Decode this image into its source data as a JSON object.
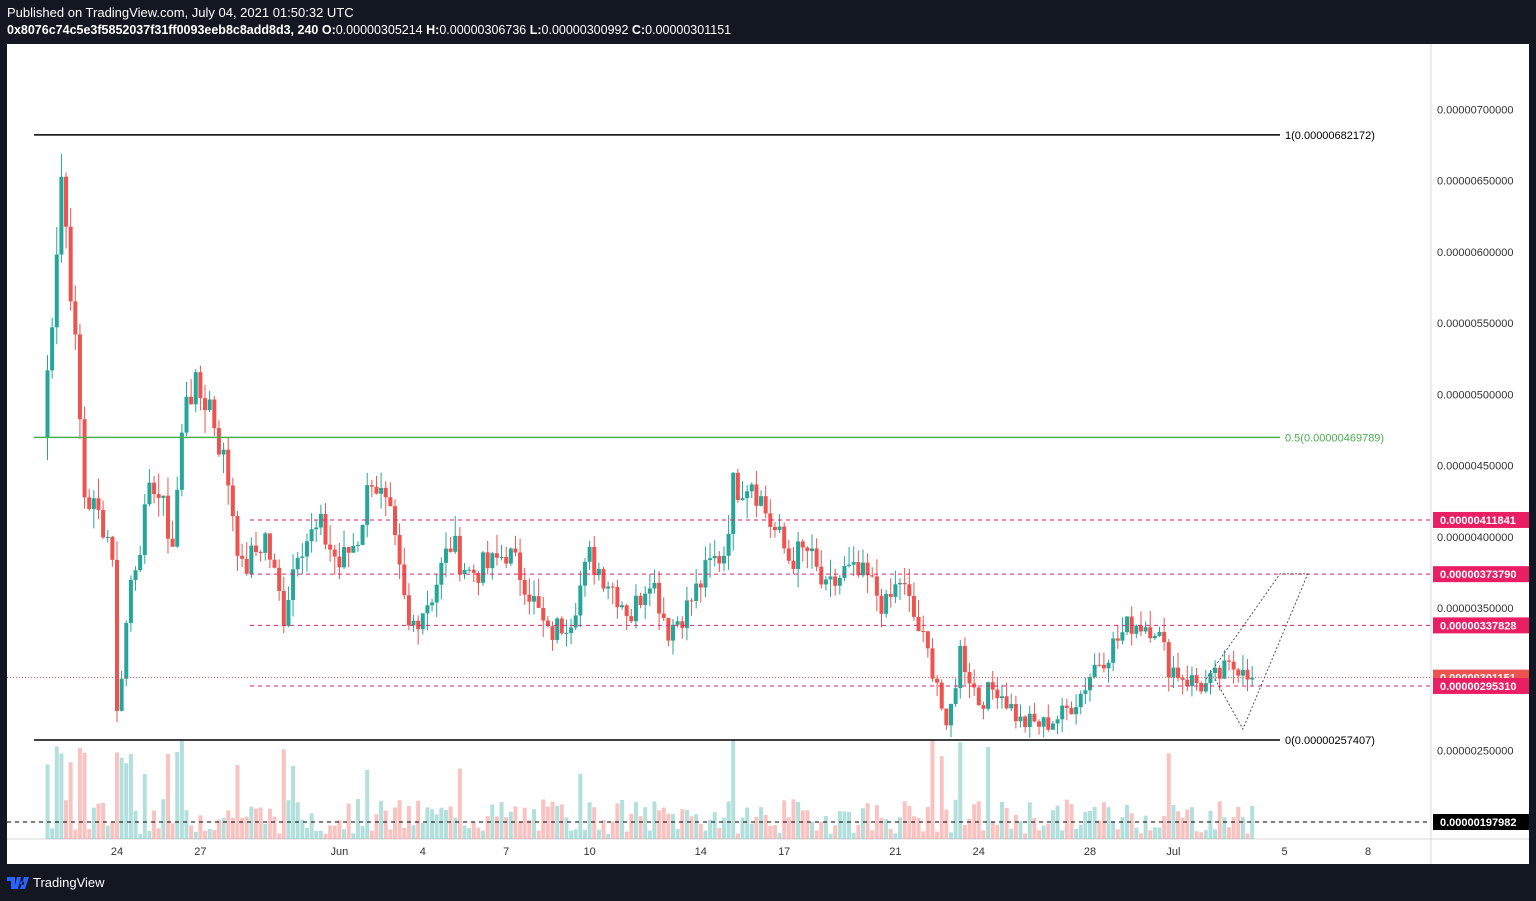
{
  "header": {
    "published": "Published on TradingView.com, July 04, 2021 01:50:32 UTC",
    "symbol": "0x8076c74c5e3f5852037f31ff0093eeb8c8add8d3, 240",
    "o_label": "O:",
    "o_value": "0.00000305214",
    "h_label": "H:",
    "h_value": "0.00000306736",
    "l_label": "L:",
    "l_value": "0.00000300992",
    "c_label": "C:",
    "c_value": "0.00000301151"
  },
  "footer": {
    "brand": "TradingView"
  },
  "colors": {
    "up": "#26a69a",
    "down": "#ef5350",
    "background": "#ffffff",
    "frame": "#131722",
    "fib_level": "#000000",
    "fib_mid": "#4caf50",
    "level_line": "#e91e63"
  },
  "chart_data": {
    "type": "candlestick",
    "interval": "240",
    "ylim": [
      1.7e-06,
      7.5e-06
    ],
    "y_ticks": [
      "0.00000250000",
      "0.00000300000",
      "0.00000350000",
      "0.00000400000",
      "0.00000450000",
      "0.00000500000",
      "0.00000550000",
      "0.00000600000",
      "0.00000650000",
      "0.00000700000"
    ],
    "x_ticks": [
      {
        "label": "24",
        "date": "2021-05-24"
      },
      {
        "label": "27",
        "date": "2021-05-27"
      },
      {
        "label": "Jun",
        "date": "2021-06-01"
      },
      {
        "label": "4",
        "date": "2021-06-04"
      },
      {
        "label": "7",
        "date": "2021-06-07"
      },
      {
        "label": "10",
        "date": "2021-06-10"
      },
      {
        "label": "14",
        "date": "2021-06-14"
      },
      {
        "label": "17",
        "date": "2021-06-17"
      },
      {
        "label": "21",
        "date": "2021-06-21"
      },
      {
        "label": "24",
        "date": "2021-06-24"
      },
      {
        "label": "28",
        "date": "2021-06-28"
      },
      {
        "label": "Jul",
        "date": "2021-07-01"
      },
      {
        "label": "5",
        "date": "2021-07-05"
      },
      {
        "label": "8",
        "date": "2021-07-08"
      }
    ],
    "fib_levels": [
      {
        "label": "1(0.00000682172)",
        "value": 6.82172e-06,
        "color": "#000000"
      },
      {
        "label": "0.5(0.00000469789)",
        "value": 4.69789e-06,
        "color": "#4caf50"
      },
      {
        "label": "0(0.00000257407)",
        "value": 2.57407e-06,
        "color": "#000000"
      }
    ],
    "price_levels": [
      {
        "label": "0.00000411841",
        "value": 4.11841e-06,
        "color": "#e91e63"
      },
      {
        "label": "0.00000373790",
        "value": 3.7379e-06,
        "color": "#e91e63"
      },
      {
        "label": "0.00000337828",
        "value": 3.37828e-06,
        "color": "#e91e63"
      },
      {
        "label": "0.00000301151",
        "value": 3.01151e-06,
        "color": "#ef5350"
      },
      {
        "label": "0.00000295310",
        "value": 2.9531e-06,
        "color": "#e91e63"
      },
      {
        "label": "0.00000197982",
        "value": 1.97982e-06,
        "color": "#000000"
      }
    ],
    "last_price": 3.01151e-06,
    "anchors": [
      {
        "date": "2021-05-21T08:00",
        "close": 4.7e-06
      },
      {
        "date": "2021-05-21T16:00",
        "close": 5.6e-06
      },
      {
        "date": "2021-05-22T00:00",
        "close": 6.55e-06
      },
      {
        "date": "2021-05-22T08:00",
        "close": 5.8e-06
      },
      {
        "date": "2021-05-22T20:00",
        "close": 4.3e-06
      },
      {
        "date": "2021-05-23T12:00",
        "close": 4.1e-06
      },
      {
        "date": "2021-05-23T20:00",
        "close": 3.9e-06
      },
      {
        "date": "2021-05-24T00:00",
        "close": 2.75e-06
      },
      {
        "date": "2021-05-24T12:00",
        "close": 3.7e-06
      },
      {
        "date": "2021-05-25T08:00",
        "close": 4.4e-06
      },
      {
        "date": "2021-05-26T00:00",
        "close": 3.95e-06
      },
      {
        "date": "2021-05-26T12:00",
        "close": 5.05e-06
      },
      {
        "date": "2021-05-27T08:00",
        "close": 4.95e-06
      },
      {
        "date": "2021-05-28T00:00",
        "close": 4.4e-06
      },
      {
        "date": "2021-05-28T12:00",
        "close": 3.75e-06
      },
      {
        "date": "2021-05-29T08:00",
        "close": 4e-06
      },
      {
        "date": "2021-05-30T00:00",
        "close": 3.45e-06
      },
      {
        "date": "2021-05-30T12:00",
        "close": 3.95e-06
      },
      {
        "date": "2021-05-31T08:00",
        "close": 4.05e-06
      },
      {
        "date": "2021-06-01T00:00",
        "close": 3.8e-06
      },
      {
        "date": "2021-06-01T16:00",
        "close": 4e-06
      },
      {
        "date": "2021-06-02T04:00",
        "close": 4.45e-06
      },
      {
        "date": "2021-06-02T20:00",
        "close": 4.1e-06
      },
      {
        "date": "2021-06-03T12:00",
        "close": 3.35e-06
      },
      {
        "date": "2021-06-04T08:00",
        "close": 3.6e-06
      },
      {
        "date": "2021-06-05T00:00",
        "close": 3.95e-06
      },
      {
        "date": "2021-06-05T16:00",
        "close": 3.75e-06
      },
      {
        "date": "2021-06-06T12:00",
        "close": 3.8e-06
      },
      {
        "date": "2021-06-07T00:00",
        "close": 3.9e-06
      },
      {
        "date": "2021-06-07T16:00",
        "close": 3.7e-06
      },
      {
        "date": "2021-06-08T12:00",
        "close": 3.3e-06
      },
      {
        "date": "2021-06-09T08:00",
        "close": 3.45e-06
      },
      {
        "date": "2021-06-10T00:00",
        "close": 3.85e-06
      },
      {
        "date": "2021-06-10T16:00",
        "close": 3.7e-06
      },
      {
        "date": "2021-06-11T12:00",
        "close": 3.45e-06
      },
      {
        "date": "2021-06-12T04:00",
        "close": 3.75e-06
      },
      {
        "date": "2021-06-12T20:00",
        "close": 3.35e-06
      },
      {
        "date": "2021-06-13T12:00",
        "close": 3.5e-06
      },
      {
        "date": "2021-06-14T08:00",
        "close": 3.8e-06
      },
      {
        "date": "2021-06-14T20:00",
        "close": 3.9e-06
      },
      {
        "date": "2021-06-15T04:00",
        "close": 4.35e-06
      },
      {
        "date": "2021-06-15T20:00",
        "close": 4.42e-06
      },
      {
        "date": "2021-06-16T12:00",
        "close": 4.1e-06
      },
      {
        "date": "2021-06-17T04:00",
        "close": 3.85e-06
      },
      {
        "date": "2021-06-17T20:00",
        "close": 3.9e-06
      },
      {
        "date": "2021-06-18T12:00",
        "close": 3.6e-06
      },
      {
        "date": "2021-06-19T04:00",
        "close": 3.75e-06
      },
      {
        "date": "2021-06-20T00:00",
        "close": 3.7e-06
      },
      {
        "date": "2021-06-20T16:00",
        "close": 3.5e-06
      },
      {
        "date": "2021-06-21T04:00",
        "close": 3.7e-06
      },
      {
        "date": "2021-06-21T20:00",
        "close": 3.35e-06
      },
      {
        "date": "2021-06-22T12:00",
        "close": 3e-06
      },
      {
        "date": "2021-06-22T20:00",
        "close": 2.6e-06
      },
      {
        "date": "2021-06-23T08:00",
        "close": 3.2e-06
      },
      {
        "date": "2021-06-24T00:00",
        "close": 2.85e-06
      },
      {
        "date": "2021-06-24T16:00",
        "close": 2.95e-06
      },
      {
        "date": "2021-06-25T12:00",
        "close": 2.7e-06
      },
      {
        "date": "2021-06-26T08:00",
        "close": 2.68e-06
      },
      {
        "date": "2021-06-27T00:00",
        "close": 2.75e-06
      },
      {
        "date": "2021-06-27T16:00",
        "close": 2.9e-06
      },
      {
        "date": "2021-06-28T04:00",
        "close": 3.1e-06
      },
      {
        "date": "2021-06-28T16:00",
        "close": 3.2e-06
      },
      {
        "date": "2021-06-29T12:00",
        "close": 3.4e-06
      },
      {
        "date": "2021-06-30T08:00",
        "close": 3.38e-06
      },
      {
        "date": "2021-06-30T20:00",
        "close": 3.1e-06
      },
      {
        "date": "2021-07-01T12:00",
        "close": 3e-06
      },
      {
        "date": "2021-07-02T04:00",
        "close": 2.95e-06
      },
      {
        "date": "2021-07-02T20:00",
        "close": 3.05e-06
      },
      {
        "date": "2021-07-03T12:00",
        "close": 3.12e-06
      },
      {
        "date": "2021-07-03T20:00",
        "close": 3.0115e-06
      }
    ],
    "projection_paths": [
      [
        {
          "date": "2021-07-02T12:00",
          "value": 3e-06
        },
        {
          "date": "2021-07-03T12:00",
          "value": 2.65e-06
        },
        {
          "date": "2021-07-05T20:00",
          "value": 3.74e-06
        },
        {
          "date": "2021-07-04T20:00",
          "value": 3.74e-06
        },
        {
          "date": "2021-07-02T04:00",
          "value": 3e-06
        }
      ]
    ]
  }
}
